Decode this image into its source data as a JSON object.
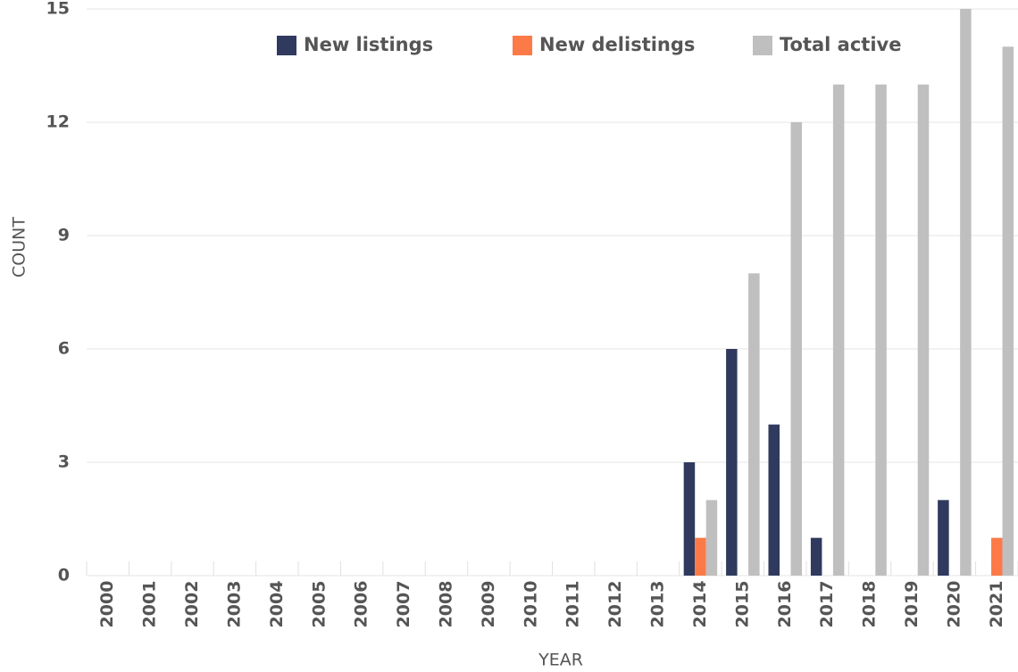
{
  "chart_data": {
    "type": "bar",
    "categories": [
      "2000",
      "2001",
      "2002",
      "2003",
      "2004",
      "2005",
      "2006",
      "2007",
      "2008",
      "2009",
      "2010",
      "2011",
      "2012",
      "2013",
      "2014",
      "2015",
      "2016",
      "2017",
      "2018",
      "2019",
      "2020",
      "2021"
    ],
    "series": [
      {
        "name": "New listings",
        "color": "#2f3a5e",
        "values": [
          0,
          0,
          0,
          0,
          0,
          0,
          0,
          0,
          0,
          0,
          0,
          0,
          0,
          0,
          3,
          6,
          4,
          1,
          0,
          0,
          2,
          0
        ]
      },
      {
        "name": "New delistings",
        "color": "#fb7a48",
        "values": [
          0,
          0,
          0,
          0,
          0,
          0,
          0,
          0,
          0,
          0,
          0,
          0,
          0,
          0,
          1,
          0,
          0,
          0,
          0,
          0,
          0,
          1
        ]
      },
      {
        "name": "Total active",
        "color": "#bfbfbf",
        "values": [
          0,
          0,
          0,
          0,
          0,
          0,
          0,
          0,
          0,
          0,
          0,
          0,
          0,
          0,
          2,
          8,
          12,
          13,
          13,
          13,
          15,
          14
        ]
      }
    ],
    "xlabel": "YEAR",
    "ylabel": "COUNT",
    "ylim": [
      0,
      15
    ],
    "yticks": [
      0,
      3,
      6,
      9,
      12,
      15
    ],
    "grid": true,
    "legend": "top"
  }
}
